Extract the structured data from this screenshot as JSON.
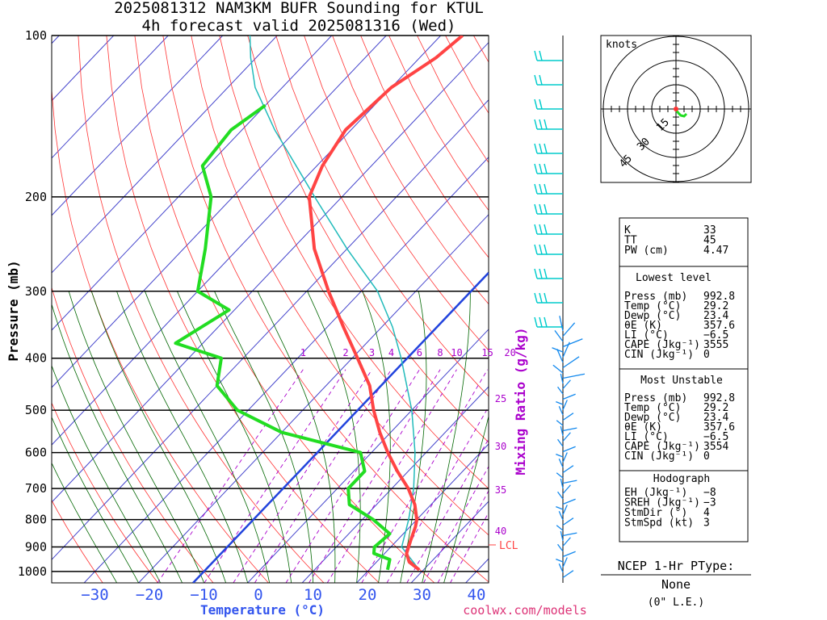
{
  "title": {
    "line1": "2025081312 NAM3KM BUFR Sounding for KTUL",
    "line2": "4h forecast valid 2025081316 (Wed)"
  },
  "axes": {
    "ylabel": "Pressure (mb)",
    "xlabel": "Temperature (°C)",
    "mixing_label": "Mixing Ratio (g/kg)",
    "pressure_ticks": [
      "100",
      "200",
      "300",
      "400",
      "500",
      "600",
      "700",
      "800",
      "900",
      "1000"
    ],
    "temp_ticks": [
      "−30",
      "−20",
      "−10",
      "0",
      "10",
      "20",
      "30",
      "40"
    ],
    "mixing_ticks": [
      "1",
      "2",
      "3",
      "4",
      "6",
      "8",
      "10",
      "15",
      "20"
    ],
    "mixing_ticks_right": [
      "25",
      "30",
      "35",
      "40"
    ],
    "lcl_label": "LCL"
  },
  "hodograph": {
    "units_label": "knots",
    "ring_labels": [
      "15",
      "30",
      "45"
    ]
  },
  "indices": {
    "top": [
      {
        "name": "K",
        "value": "33"
      },
      {
        "name": "TT",
        "value": "45"
      },
      {
        "name": "PW (cm)",
        "value": "4.47"
      }
    ],
    "lowest": {
      "header": "Lowest level",
      "rows": [
        {
          "name": "Press (mb)",
          "value": "992.8"
        },
        {
          "name": "Temp (°C)",
          "value": "29.2"
        },
        {
          "name": "Dewp (°C)",
          "value": "23.4"
        },
        {
          "name": "θE (K)",
          "value": "357.6"
        },
        {
          "name": "LI (°C)",
          "value": "−6.5"
        },
        {
          "name": "CAPE (Jkg⁻¹)",
          "value": "3555"
        },
        {
          "name": "CIN (Jkg⁻¹)",
          "value": "0"
        }
      ]
    },
    "unstable": {
      "header": "Most Unstable",
      "rows": [
        {
          "name": "Press (mb)",
          "value": "992.8"
        },
        {
          "name": "Temp (°C)",
          "value": "29.2"
        },
        {
          "name": "Dewp (°C)",
          "value": "23.4"
        },
        {
          "name": "θE (K)",
          "value": "357.6"
        },
        {
          "name": "LI (°C)",
          "value": "−6.5"
        },
        {
          "name": "CAPE (Jkg⁻¹)",
          "value": "3554"
        },
        {
          "name": "CIN (Jkg⁻¹)",
          "value": "0"
        }
      ]
    },
    "hodo": {
      "header": "Hodograph",
      "rows": [
        {
          "name": "EH (Jkg⁻¹)",
          "value": "−8"
        },
        {
          "name": "SREH (Jkg⁻¹)",
          "value": "−3"
        },
        {
          "name": "StmDir (°)",
          "value": "4"
        },
        {
          "name": "StmSpd (kt)",
          "value": "3"
        }
      ]
    }
  },
  "ptype": {
    "header": "NCEP 1-Hr PType:",
    "value": "None",
    "sub": "(0\" L.E.)"
  },
  "footer": "coolwx.com/models",
  "colors": {
    "temperature": "#ff4444",
    "dewpoint": "#22dd22",
    "parcel": "#22bbbb",
    "isotherm": "#4444cc",
    "dry_adiabat": "#ff3333",
    "moist_adiabat": "#006600",
    "mixing": "#aa00cc",
    "barb_upper": "#00cccc",
    "barb_lower": "#1188ee",
    "parcel_line": "#2244dd"
  },
  "chart_data": {
    "type": "line",
    "temperature": [
      {
        "p": 992.8,
        "t": 29.2
      },
      {
        "p": 960,
        "t": 26
      },
      {
        "p": 925,
        "t": 24
      },
      {
        "p": 875,
        "t": 22.5
      },
      {
        "p": 825,
        "t": 21
      },
      {
        "p": 800,
        "t": 20
      },
      {
        "p": 750,
        "t": 17
      },
      {
        "p": 700,
        "t": 13
      },
      {
        "p": 650,
        "t": 8
      },
      {
        "p": 600,
        "t": 3
      },
      {
        "p": 550,
        "t": -2
      },
      {
        "p": 500,
        "t": -7
      },
      {
        "p": 450,
        "t": -12
      },
      {
        "p": 400,
        "t": -19
      },
      {
        "p": 350,
        "t": -27
      },
      {
        "p": 300,
        "t": -36
      },
      {
        "p": 250,
        "t": -46
      },
      {
        "p": 200,
        "t": -56
      },
      {
        "p": 175,
        "t": -59
      },
      {
        "p": 150,
        "t": -61
      },
      {
        "p": 125,
        "t": -60
      },
      {
        "p": 110,
        "t": -57
      },
      {
        "p": 100,
        "t": -56
      }
    ],
    "dewpoint": [
      {
        "p": 992.8,
        "t": 23.4
      },
      {
        "p": 950,
        "t": 22
      },
      {
        "p": 925,
        "t": 18
      },
      {
        "p": 900,
        "t": 17
      },
      {
        "p": 850,
        "t": 17.5
      },
      {
        "p": 800,
        "t": 12
      },
      {
        "p": 750,
        "t": 5
      },
      {
        "p": 700,
        "t": 2
      },
      {
        "p": 650,
        "t": 2
      },
      {
        "p": 600,
        "t": -2
      },
      {
        "p": 550,
        "t": -20
      },
      {
        "p": 500,
        "t": -32
      },
      {
        "p": 450,
        "t": -40
      },
      {
        "p": 400,
        "t": -44
      },
      {
        "p": 375,
        "t": -55
      },
      {
        "p": 325,
        "t": -51
      },
      {
        "p": 300,
        "t": -60
      },
      {
        "p": 250,
        "t": -66
      },
      {
        "p": 200,
        "t": -74
      },
      {
        "p": 175,
        "t": -81
      },
      {
        "p": 150,
        "t": -82
      },
      {
        "p": 135,
        "t": -80
      }
    ],
    "parcel": [
      {
        "p": 992.8,
        "t": 29.2
      },
      {
        "p": 900,
        "t": 22
      },
      {
        "p": 800,
        "t": 18.5
      },
      {
        "p": 700,
        "t": 14
      },
      {
        "p": 600,
        "t": 8
      },
      {
        "p": 500,
        "t": 0
      },
      {
        "p": 400,
        "t": -11
      },
      {
        "p": 350,
        "t": -18
      },
      {
        "p": 300,
        "t": -27
      },
      {
        "p": 250,
        "t": -40
      },
      {
        "p": 200,
        "t": -55
      },
      {
        "p": 150,
        "t": -74
      },
      {
        "p": 125,
        "t": -85
      },
      {
        "p": 110,
        "t": -91
      },
      {
        "p": 100,
        "t": -95
      }
    ],
    "lcl_pressure": 892
  }
}
